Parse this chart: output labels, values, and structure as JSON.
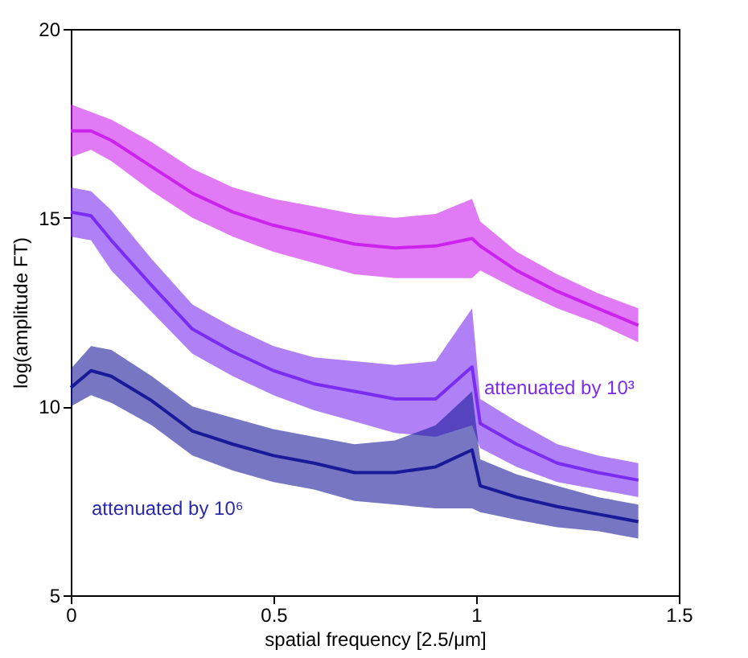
{
  "chart_data": {
    "type": "line",
    "xlabel": "spatial frequency [2.5/μm]",
    "ylabel": "log(amplitude FT)",
    "xlim": [
      0,
      1.5
    ],
    "xticks": [
      0,
      0.5,
      1,
      1.5
    ],
    "ylim": [
      5,
      20
    ],
    "yticks": [
      5,
      10,
      15,
      20
    ],
    "x": [
      0,
      0.05,
      0.1,
      0.2,
      0.3,
      0.4,
      0.5,
      0.6,
      0.7,
      0.8,
      0.9,
      0.99,
      1.01,
      1.1,
      1.2,
      1.3,
      1.4
    ],
    "series": [
      {
        "color": "#cc22ee",
        "values": [
          17.3,
          17.3,
          17.05,
          16.35,
          15.65,
          15.15,
          14.8,
          14.55,
          14.3,
          14.2,
          14.25,
          14.45,
          14.25,
          13.6,
          13.05,
          12.6,
          12.15
        ],
        "lower": [
          16.6,
          16.8,
          16.5,
          15.7,
          15.0,
          14.5,
          14.1,
          13.8,
          13.5,
          13.4,
          13.4,
          13.4,
          13.6,
          13.1,
          12.6,
          12.2,
          11.7
        ],
        "upper": [
          18.0,
          17.8,
          17.6,
          17.0,
          16.3,
          15.8,
          15.5,
          15.3,
          15.1,
          15.0,
          15.1,
          15.5,
          14.9,
          14.1,
          13.5,
          13.0,
          12.6
        ]
      },
      {
        "color": "#7a2cf0",
        "values": [
          15.15,
          15.05,
          14.4,
          13.2,
          12.05,
          11.45,
          10.95,
          10.6,
          10.4,
          10.2,
          10.2,
          11.05,
          9.55,
          9.0,
          8.5,
          8.25,
          8.05
        ],
        "lower": [
          14.5,
          14.4,
          13.6,
          12.5,
          11.4,
          10.8,
          10.3,
          9.9,
          9.6,
          9.3,
          9.2,
          9.5,
          8.9,
          8.4,
          8.0,
          7.8,
          7.6
        ],
        "upper": [
          15.8,
          15.7,
          15.2,
          13.9,
          12.7,
          12.1,
          11.6,
          11.3,
          11.2,
          11.1,
          11.2,
          12.6,
          10.2,
          9.6,
          9.0,
          8.7,
          8.5
        ]
      },
      {
        "color": "#1a1a99",
        "values": [
          10.5,
          10.95,
          10.8,
          10.15,
          9.35,
          9.0,
          8.7,
          8.5,
          8.25,
          8.25,
          8.4,
          8.85,
          7.9,
          7.6,
          7.35,
          7.15,
          6.95
        ],
        "lower": [
          10.0,
          10.3,
          10.1,
          9.5,
          8.7,
          8.3,
          8.0,
          7.8,
          7.5,
          7.4,
          7.3,
          7.3,
          7.2,
          7.0,
          6.8,
          6.7,
          6.5
        ],
        "upper": [
          11.0,
          11.6,
          11.5,
          10.8,
          10.0,
          9.7,
          9.4,
          9.2,
          9.0,
          9.1,
          9.5,
          10.4,
          8.6,
          8.2,
          7.9,
          7.6,
          7.4
        ]
      }
    ],
    "annotations": [
      "attenuated by 10³",
      "attenuated by 10⁶"
    ]
  }
}
